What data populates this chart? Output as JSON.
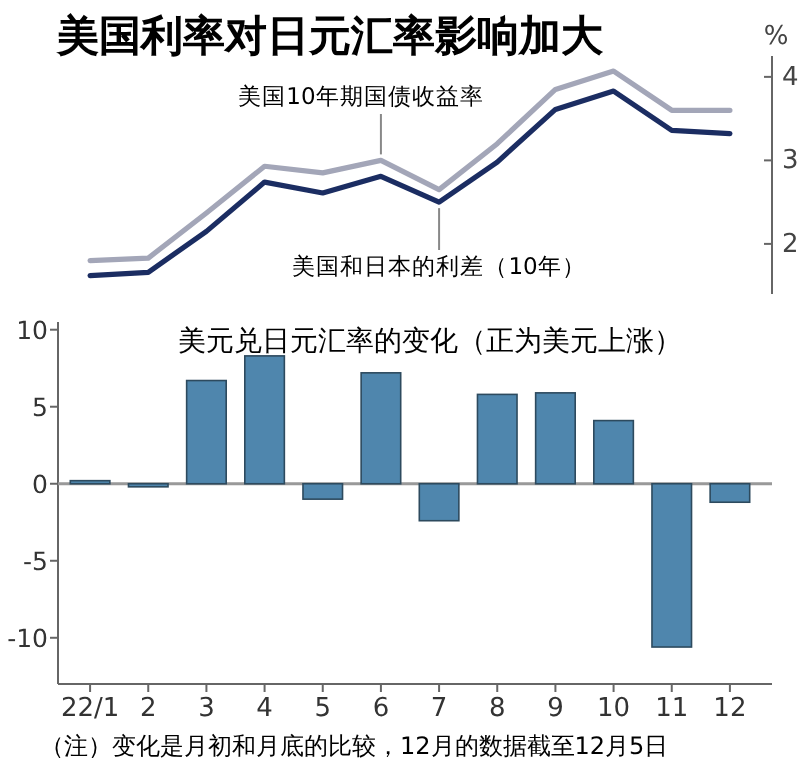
{
  "chart_data": [
    {
      "type": "line",
      "title": "美国利率对日元汇率影响加大",
      "ylabel": "%",
      "categories": [
        null,
        null,
        null,
        null,
        null,
        null,
        null,
        null,
        null,
        null,
        null,
        null
      ],
      "tick_labels": "y",
      "ylim": [
        1.4,
        4.25
      ],
      "yticks": [
        2,
        3,
        4
      ],
      "series": [
        {
          "name": "美国10年期国债收益率",
          "color": "#a3a6b8",
          "values": [
            1.8,
            1.83,
            2.37,
            2.93,
            2.85,
            3.0,
            2.65,
            3.2,
            3.85,
            4.07,
            3.6,
            3.6
          ]
        },
        {
          "name": "美国和日本的利差（10年）",
          "color": "#1b2d62",
          "values": [
            1.62,
            1.66,
            2.15,
            2.74,
            2.61,
            2.81,
            2.5,
            2.98,
            3.61,
            3.83,
            3.36,
            3.32
          ]
        }
      ]
    },
    {
      "type": "bar",
      "title": "美元兑日元汇率的变化（正为美元上涨）",
      "categories": [
        "22/1",
        "2",
        "3",
        "4",
        "5",
        "6",
        "7",
        "8",
        "9",
        "10",
        "11",
        "12"
      ],
      "values": [
        0.2,
        -0.2,
        6.7,
        8.3,
        -1.0,
        7.2,
        -2.4,
        5.8,
        5.9,
        4.1,
        -10.6,
        -1.2
      ],
      "color": "#4f86ad",
      "ylim": [
        -13,
        10.5
      ],
      "yticks": [
        -10,
        -5,
        0,
        5,
        10
      ],
      "annotations": [
        "（注）变化是月初和月底的比较，12月的数据截至12月5日"
      ]
    }
  ]
}
